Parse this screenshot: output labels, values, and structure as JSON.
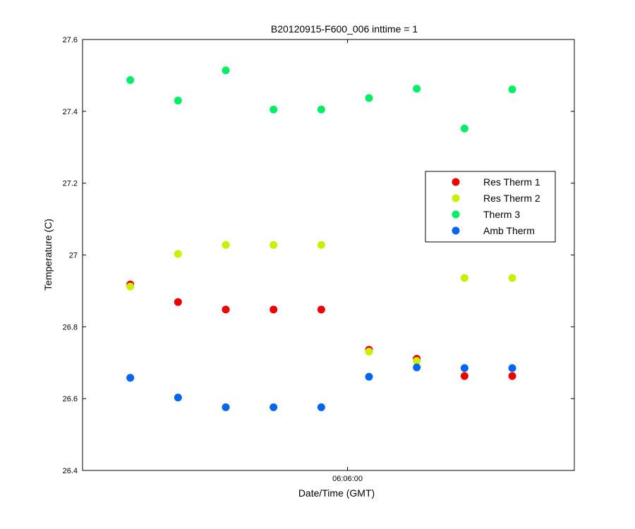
{
  "chart_data": {
    "type": "scatter",
    "title": "B20120915-F600_006 inttime = 1",
    "xlabel": "Date/Time (GMT)",
    "ylabel": "Temperature (C)",
    "ylim": [
      26.4,
      27.6
    ],
    "yticks": [
      26.4,
      26.6,
      26.8,
      27,
      27.2,
      27.4,
      27.6
    ],
    "ytick_labels": [
      "26.4",
      "26.6",
      "26.8",
      "27",
      "27.2",
      "27.4",
      "27.6"
    ],
    "x": [
      1,
      2,
      3,
      4,
      5,
      6,
      7,
      8,
      9
    ],
    "xlim": [
      -0.0,
      10.3
    ],
    "xticks": [
      {
        "x": 5.55,
        "label": "06:06:00"
      }
    ],
    "grid": false,
    "legend_position": "right",
    "series": [
      {
        "name": "Res Therm 1",
        "color": "#ee0000",
        "values": [
          26.918,
          26.869,
          26.848,
          26.848,
          26.848,
          26.736,
          26.711,
          26.663,
          26.663
        ]
      },
      {
        "name": "Res Therm 2",
        "color": "#ccee00",
        "values": [
          26.912,
          27.003,
          27.028,
          27.028,
          27.028,
          26.731,
          26.705,
          26.936,
          26.936
        ]
      },
      {
        "name": "Therm 3",
        "color": "#00ee66",
        "values": [
          27.487,
          27.43,
          27.514,
          27.405,
          27.405,
          27.437,
          27.463,
          27.352,
          27.461
        ]
      },
      {
        "name": "Amb Therm",
        "color": "#0066ee",
        "values": [
          26.658,
          26.603,
          26.576,
          26.576,
          26.576,
          26.661,
          26.687,
          26.685,
          26.685
        ]
      }
    ]
  }
}
